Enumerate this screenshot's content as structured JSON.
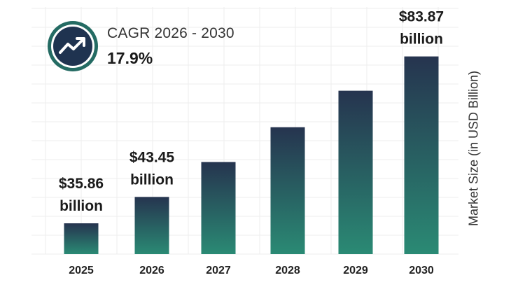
{
  "cagr": {
    "label": "CAGR 2026 - 2030",
    "value": "17.9%",
    "icon": "trending-up-icon",
    "ring_color": "#246b63",
    "inner_color": "#1f3350"
  },
  "colors": {
    "bar_top": "#26344f",
    "bar_bottom": "#2a8a74",
    "grid": "#ededed"
  },
  "chart_data": {
    "type": "bar",
    "title": "",
    "xlabel": "",
    "ylabel": "Market Size (in USD Billion)",
    "categories": [
      "2025",
      "2026",
      "2027",
      "2028",
      "2029",
      "2030"
    ],
    "values": [
      35.86,
      43.45,
      53.5,
      63.5,
      74.0,
      83.87
    ],
    "data_labels": [
      [
        "$35.86",
        "billion"
      ],
      [
        "$43.45",
        "billion"
      ],
      null,
      null,
      null,
      [
        "$83.87",
        "billion"
      ]
    ],
    "ylim": [
      27,
      85
    ],
    "grid": true,
    "legend": "none"
  }
}
